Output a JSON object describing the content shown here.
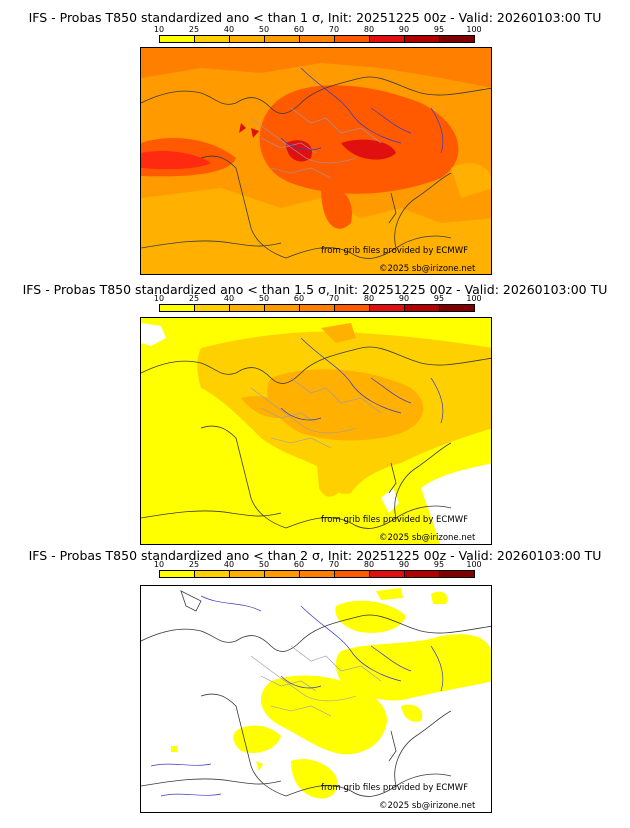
{
  "legend": {
    "ticks": [
      "10",
      "25",
      "40",
      "50",
      "60",
      "70",
      "80",
      "90",
      "95",
      "100"
    ],
    "colors": [
      "#ffff00",
      "#ffd000",
      "#ffb000",
      "#ff9a00",
      "#ff8000",
      "#ff5a00",
      "#e01010",
      "#b00000",
      "#800000"
    ]
  },
  "panels": [
    {
      "title": "IFS - Probas T850  standardized ano < than 1 σ, Init: 20251225 00z - Valid: 20260103:00 TU",
      "credit_source": "from grib files provided by ECMWF",
      "credit_copyright": "©2025 sb@irizone.net"
    },
    {
      "title": "IFS - Probas T850  standardized ano < than 1.5 σ, Init: 20251225 00z - Valid: 20260103:00 TU",
      "credit_source": "from grib files provided by ECMWF",
      "credit_copyright": "©2025 sb@irizone.net"
    },
    {
      "title": "IFS - Probas T850  standardized ano < than 2 σ, Init: 20251225 00z - Valid: 20260103:00 TU",
      "credit_source": "from grib files provided by ECMWF",
      "credit_copyright": "©2025 sb@irizone.net"
    }
  ]
}
